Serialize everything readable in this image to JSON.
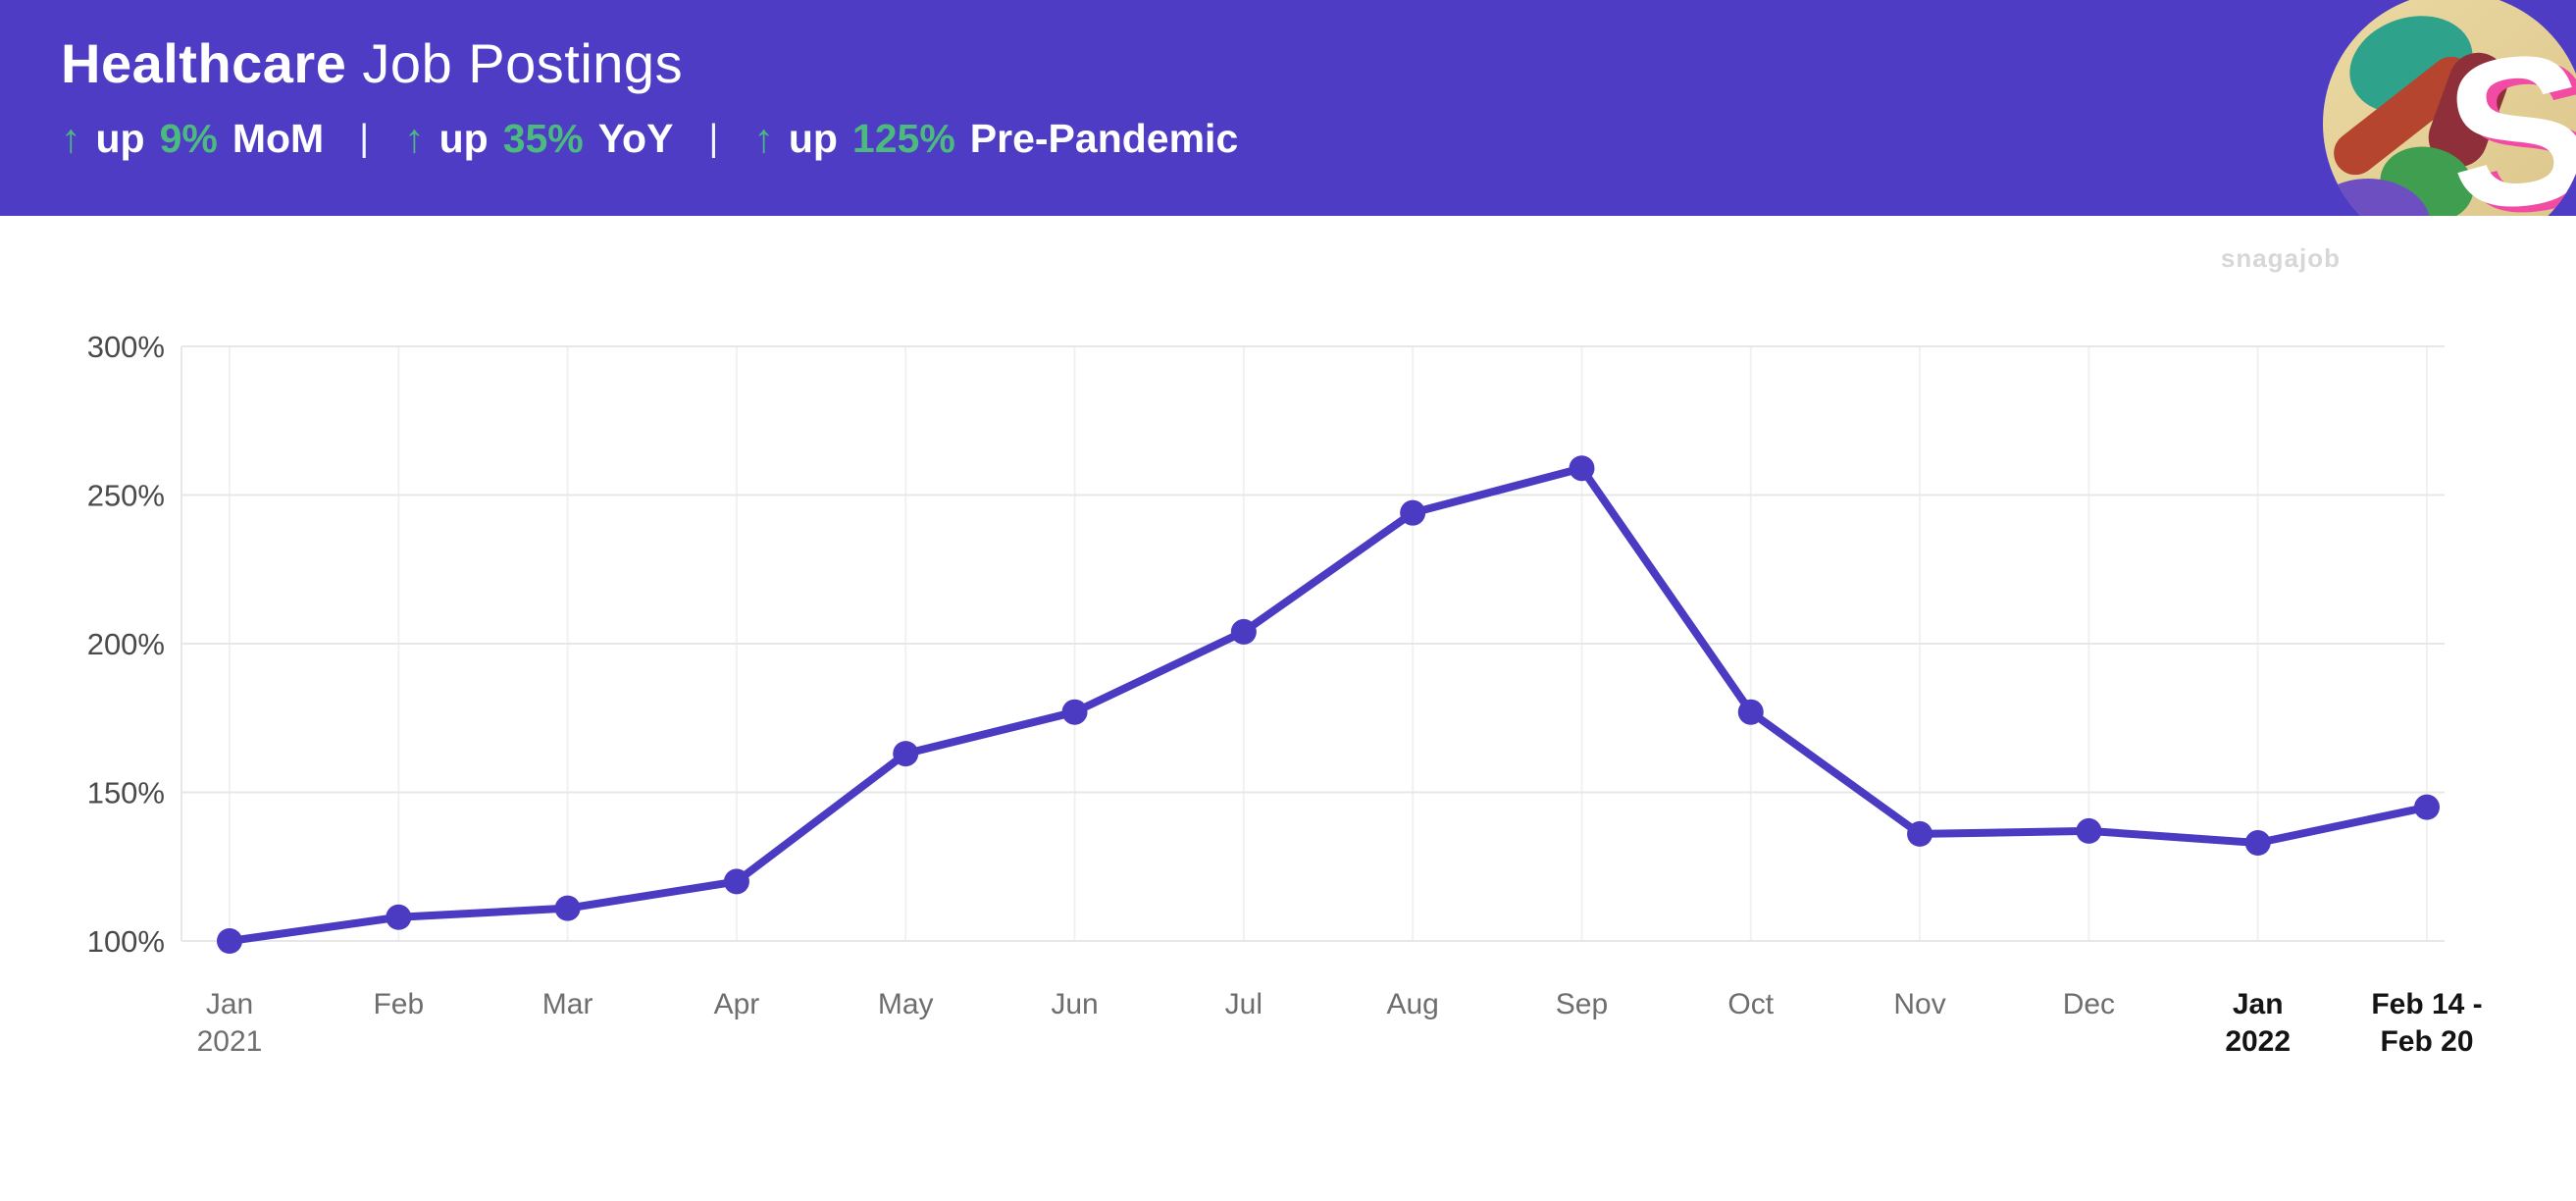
{
  "header": {
    "title_bold": "Healthcare",
    "title_rest": " Job Postings",
    "divider": "|",
    "logo_letter": "S",
    "stats": [
      {
        "arrow": "↑",
        "prefix": "up",
        "value": "9%",
        "label": "MoM"
      },
      {
        "arrow": "↑",
        "prefix": "up",
        "value": "35%",
        "label": "YoY"
      },
      {
        "arrow": "↑",
        "prefix": "up",
        "value": "125%",
        "label": "Pre-Pandemic"
      }
    ],
    "colors": {
      "background": "#4e3cc5",
      "accent_green": "#4cba7e"
    }
  },
  "watermark": "snagajob",
  "chart_data": {
    "type": "line",
    "title": "Healthcare Job Postings",
    "categories": [
      {
        "lines": [
          "Jan",
          "2021"
        ],
        "bold": false
      },
      {
        "lines": [
          "Feb"
        ],
        "bold": false
      },
      {
        "lines": [
          "Mar"
        ],
        "bold": false
      },
      {
        "lines": [
          "Apr"
        ],
        "bold": false
      },
      {
        "lines": [
          "May"
        ],
        "bold": false
      },
      {
        "lines": [
          "Jun"
        ],
        "bold": false
      },
      {
        "lines": [
          "Jul"
        ],
        "bold": false
      },
      {
        "lines": [
          "Aug"
        ],
        "bold": false
      },
      {
        "lines": [
          "Sep"
        ],
        "bold": false
      },
      {
        "lines": [
          "Oct"
        ],
        "bold": false
      },
      {
        "lines": [
          "Nov"
        ],
        "bold": false
      },
      {
        "lines": [
          "Dec"
        ],
        "bold": false
      },
      {
        "lines": [
          "Jan",
          "2022"
        ],
        "bold": true
      },
      {
        "lines": [
          "Feb 14 -",
          "Feb 20"
        ],
        "bold": true
      }
    ],
    "values": [
      100,
      108,
      111,
      120,
      163,
      177,
      204,
      244,
      259,
      177,
      136,
      137,
      133,
      145
    ],
    "yticks": [
      100,
      150,
      200,
      250,
      300
    ],
    "ytick_suffix": "%",
    "ylim": [
      100,
      300
    ],
    "grid": true,
    "legend": "none",
    "line_color": "#4b3ac2",
    "grid_color": "#e7e7e7",
    "vgrid_color": "#f1f1f1",
    "ylabel_color": "#4a4a4a",
    "xlabel_color": "#6e6e6e",
    "xlabel_bold_color": "#141414"
  }
}
